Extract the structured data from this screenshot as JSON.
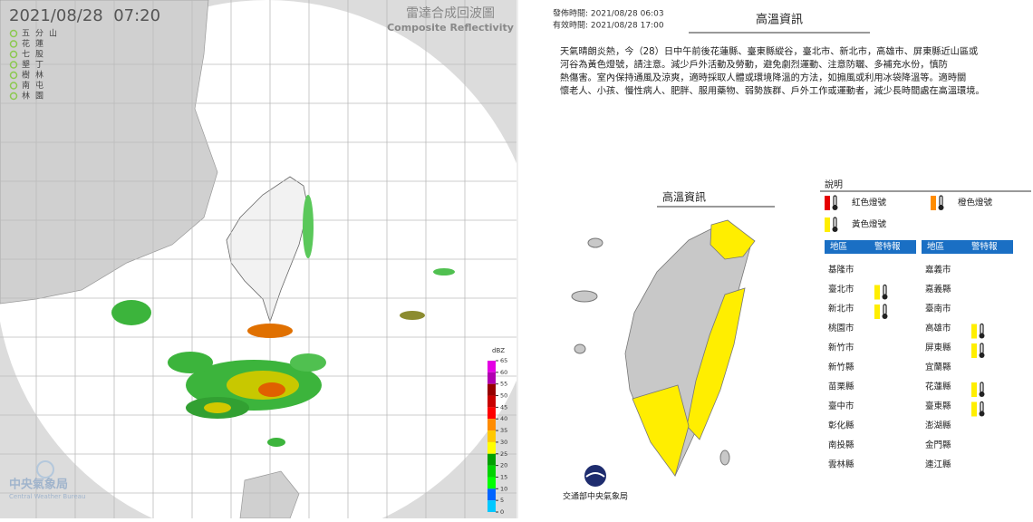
{
  "radar": {
    "timestamp": "2021/08/28  07:20",
    "title": "雷達合成回波圖",
    "subtitle": "Composite Reflectivity",
    "stations": [
      "五分山",
      "花蓮",
      "七股",
      "墾丁",
      "樹林",
      "南屯",
      "林園"
    ],
    "colorbar": {
      "unit": "dBZ",
      "ticks": [
        65,
        60,
        55,
        50,
        45,
        40,
        35,
        30,
        25,
        20,
        15,
        10,
        5,
        0
      ],
      "colors": [
        "#e400e4",
        "#b000b0",
        "#960000",
        "#c80000",
        "#ff0000",
        "#ff8c00",
        "#ffc800",
        "#ffff00",
        "#00a000",
        "#00d200",
        "#00ff00",
        "#0064ff",
        "#00c8ff"
      ]
    },
    "logo": {
      "name": "中央氣象局",
      "name_en": "Central Weather Bureau"
    }
  },
  "heat": {
    "issued": "發佈時間: 2021/08/28 06:03",
    "valid": "有效時間: 2021/08/28 17:00",
    "title": "高溫資訊",
    "text": [
      "天氣晴朗炎熱，今（28）日中午前後花蓮縣、臺東縣縱谷，臺北市、新北市，高雄市、屏東縣近山區或",
      "河谷為黃色燈號，請注意。減少戶外活動及勞動，避免劇烈運動、注意防曬、多補充水份，慎防",
      "熱傷害。室內保持通風及涼爽，適時採取人體或環境降溫的方法，如搧風或利用冰袋降溫等。適時關",
      "懷老人、小孩、慢性病人、肥胖、服用藥物、弱勢族群、戶外工作或運動者，減少長時間處在高溫環境。"
    ],
    "map_title": "高溫資訊",
    "legend_title": "說明",
    "legend": [
      {
        "label": "紅色燈號",
        "color": "#e60000"
      },
      {
        "label": "橙色燈號",
        "color": "#ff8c00"
      },
      {
        "label": "黃色燈號",
        "color": "#ffee00"
      }
    ],
    "headers": [
      "地區",
      "警特報"
    ],
    "columns": [
      [
        {
          "area": "基隆市"
        },
        {
          "area": "臺北市",
          "signal": "#ffee00"
        },
        {
          "area": "新北市",
          "signal": "#ffee00"
        },
        {
          "area": "桃園市"
        },
        {
          "area": "新竹市"
        },
        {
          "area": "新竹縣"
        },
        {
          "area": "苗栗縣"
        },
        {
          "area": "臺中市"
        },
        {
          "area": "彰化縣"
        },
        {
          "area": "南投縣"
        },
        {
          "area": "雲林縣"
        }
      ],
      [
        {
          "area": "嘉義市"
        },
        {
          "area": "嘉義縣"
        },
        {
          "area": "臺南市"
        },
        {
          "area": "高雄市",
          "signal": "#ffee00"
        },
        {
          "area": "屏東縣",
          "signal": "#ffee00"
        },
        {
          "area": "宜蘭縣"
        },
        {
          "area": "花蓮縣",
          "signal": "#ffee00"
        },
        {
          "area": "臺東縣",
          "signal": "#ffee00"
        },
        {
          "area": "澎湖縣"
        },
        {
          "area": "金門縣"
        },
        {
          "area": "連江縣"
        }
      ]
    ],
    "footer": "交通部中央氣象局"
  }
}
